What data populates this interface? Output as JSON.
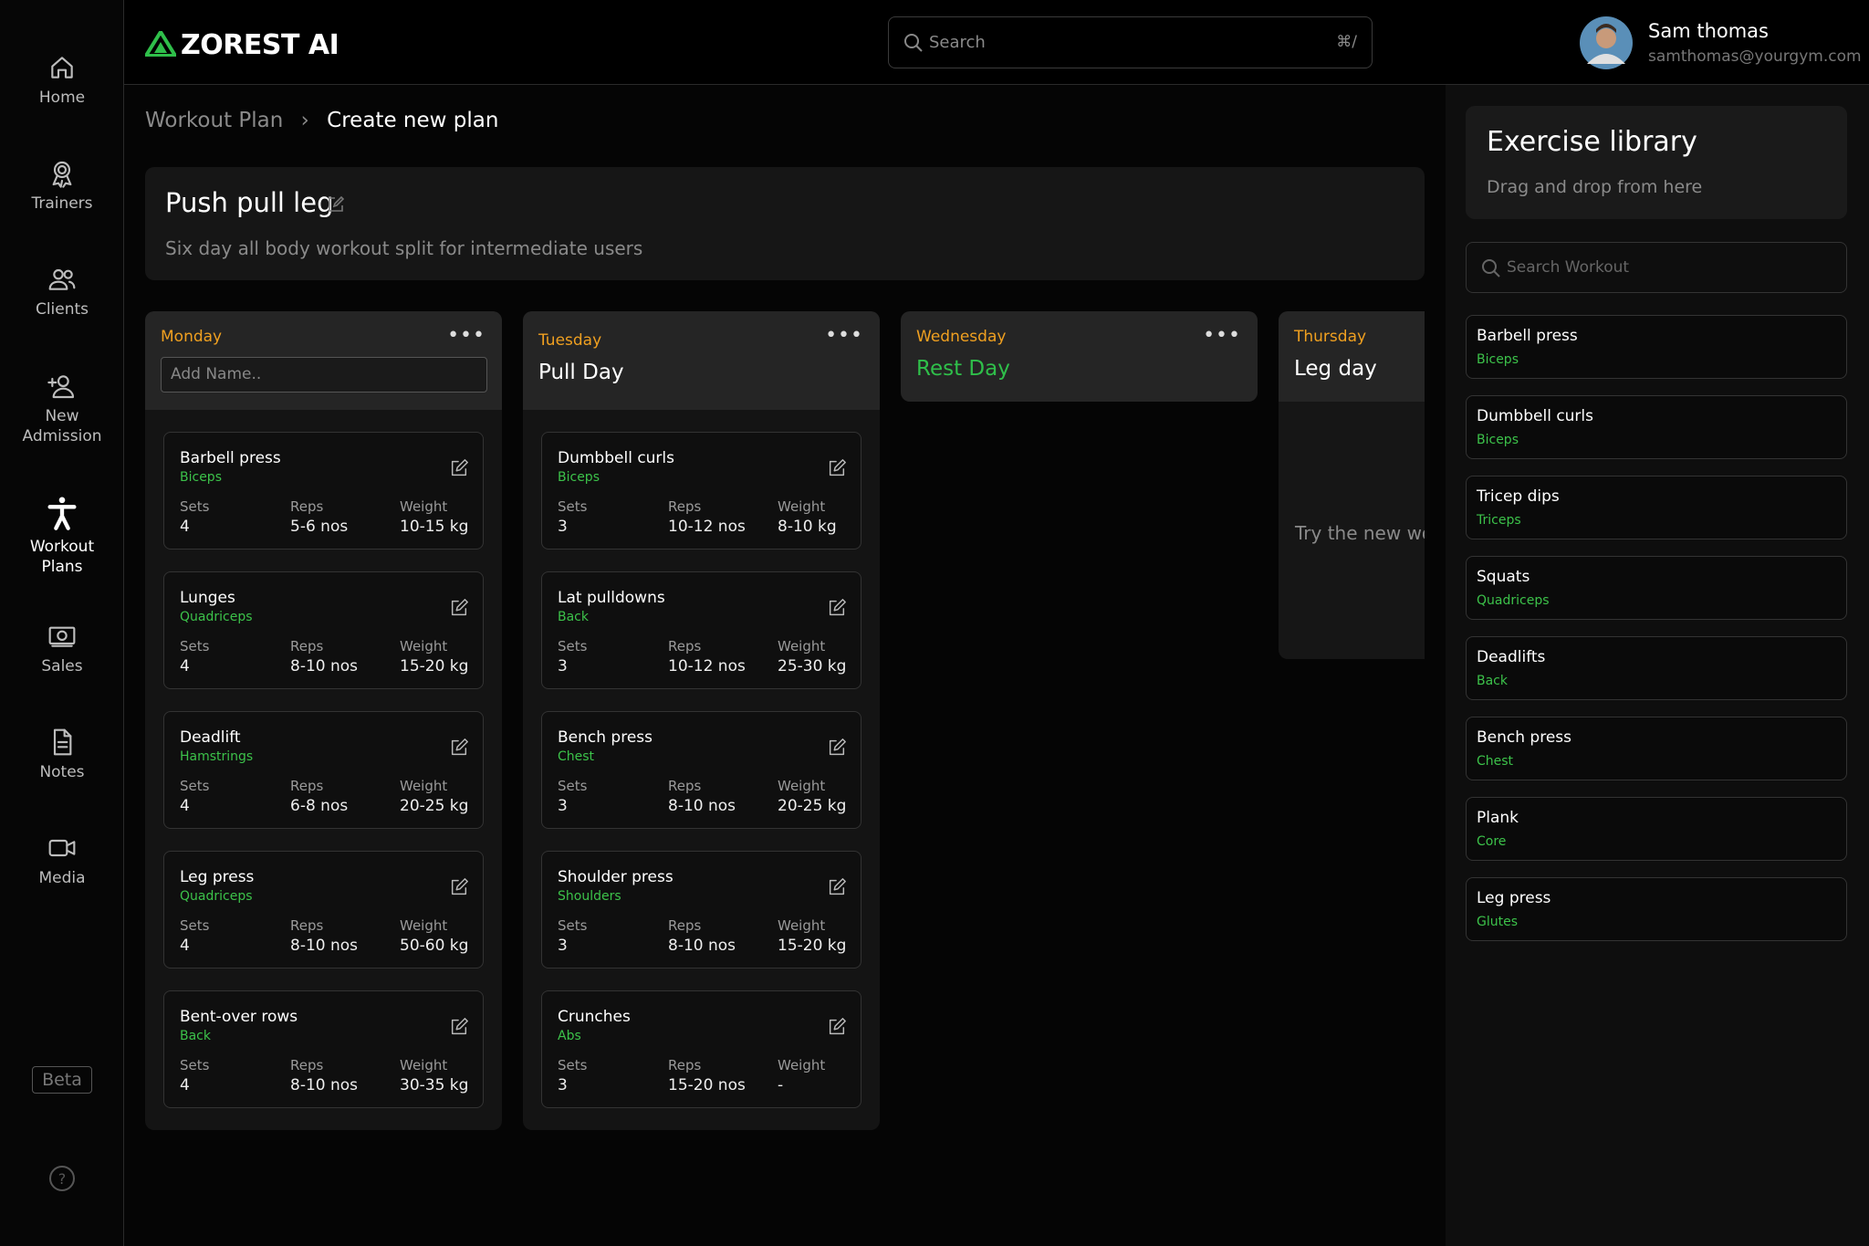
{
  "sidebar": {
    "items": [
      "Home",
      "Trainers",
      "Clients",
      "New Admission",
      "Workout Plans",
      "Sales",
      "Notes",
      "Media"
    ],
    "active": 4,
    "beta": "Beta"
  },
  "header": {
    "logo": "ZOREST AI",
    "search_placeholder": "Search",
    "search_shortcut": "⌘/",
    "user": {
      "name": "Sam thomas",
      "email": "samthomas@yourgym.com"
    }
  },
  "breadcrumb": [
    "Workout Plan",
    "Create new plan"
  ],
  "plan": {
    "title": "Push pull leg",
    "description": "Six day all body workout split for intermediate users"
  },
  "field_labels": {
    "sets": "Sets",
    "reps": "Reps",
    "weight": "Weight"
  },
  "days": [
    {
      "day": "Monday",
      "name_placeholder": "Add Name..",
      "exercises": [
        {
          "name": "Barbell press",
          "muscle": "Biceps",
          "sets": 4,
          "reps": "5-6 nos",
          "weight": "10-15 kg"
        },
        {
          "name": "Lunges",
          "muscle": "Quadriceps",
          "sets": 4,
          "reps": "8-10 nos",
          "weight": "15-20 kg"
        },
        {
          "name": "Deadlift",
          "muscle": "Hamstrings",
          "sets": 4,
          "reps": "6-8 nos",
          "weight": "20-25 kg"
        },
        {
          "name": "Leg press",
          "muscle": "Quadriceps",
          "sets": 4,
          "reps": "8-10 nos",
          "weight": "50-60 kg"
        },
        {
          "name": "Bent-over rows",
          "muscle": "Back",
          "sets": 4,
          "reps": "8-10 nos",
          "weight": "30-35 kg"
        }
      ]
    },
    {
      "day": "Tuesday",
      "title": "Pull Day",
      "exercises": [
        {
          "name": "Dumbbell curls",
          "muscle": "Biceps",
          "sets": 3,
          "reps": "10-12 nos",
          "weight": "8-10 kg"
        },
        {
          "name": "Lat pulldowns",
          "muscle": "Back",
          "sets": 3,
          "reps": "10-12 nos",
          "weight": "25-30 kg"
        },
        {
          "name": "Bench press",
          "muscle": "Chest",
          "sets": 3,
          "reps": "8-10 nos",
          "weight": "20-25 kg"
        },
        {
          "name": "Shoulder press",
          "muscle": "Shoulders",
          "sets": 3,
          "reps": "8-10 nos",
          "weight": "15-20 kg"
        },
        {
          "name": "Crunches",
          "muscle": "Abs",
          "sets": 3,
          "reps": "15-20 nos",
          "weight": "-"
        }
      ]
    },
    {
      "day": "Wednesday",
      "title": "Rest Day",
      "title_color": "#2fbf4a"
    },
    {
      "day": "Thursday",
      "title": "Leg day",
      "note": "Try the new wor"
    }
  ],
  "library": {
    "title": "Exercise library",
    "subtitle": "Drag and drop from here",
    "search_placeholder": "Search Workout",
    "items": [
      {
        "name": "Barbell press",
        "muscle": "Biceps"
      },
      {
        "name": "Dumbbell curls",
        "muscle": "Biceps"
      },
      {
        "name": "Tricep dips",
        "muscle": "Triceps"
      },
      {
        "name": "Squats",
        "muscle": "Quadriceps"
      },
      {
        "name": "Deadlifts",
        "muscle": "Back"
      },
      {
        "name": "Bench press",
        "muscle": "Chest"
      },
      {
        "name": "Plank",
        "muscle": "Core"
      },
      {
        "name": "Leg press",
        "muscle": "Glutes"
      }
    ]
  }
}
